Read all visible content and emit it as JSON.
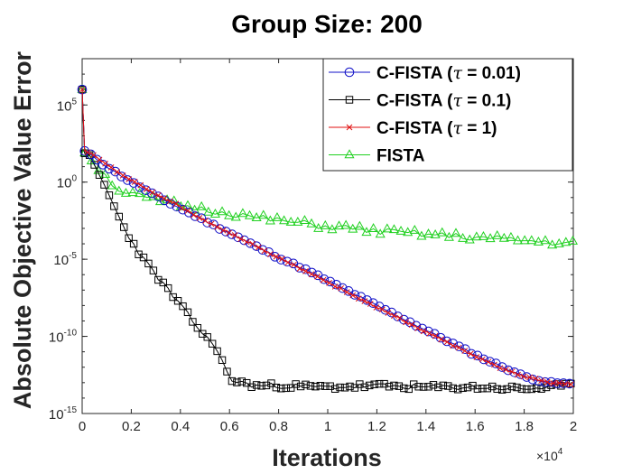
{
  "chart_data": {
    "type": "line",
    "title": "Group Size:  200",
    "xlabel": "Iterations",
    "ylabel": "Absolute Objective Value Error",
    "x_multiplier_label": "×10",
    "x_multiplier_exp": "4",
    "xlim": [
      0,
      20000
    ],
    "ylim_log10": [
      -15,
      8
    ],
    "yscale": "log",
    "xticks": [
      {
        "value": 0,
        "label": "0"
      },
      {
        "value": 2000,
        "label": "0.2"
      },
      {
        "value": 4000,
        "label": "0.4"
      },
      {
        "value": 6000,
        "label": "0.6"
      },
      {
        "value": 8000,
        "label": "0.8"
      },
      {
        "value": 10000,
        "label": "1"
      },
      {
        "value": 12000,
        "label": "1.2"
      },
      {
        "value": 14000,
        "label": "1.4"
      },
      {
        "value": 16000,
        "label": "1.6"
      },
      {
        "value": 18000,
        "label": "1.8"
      },
      {
        "value": 20000,
        "label": "2"
      }
    ],
    "yticks": [
      {
        "value": 5,
        "base": "10",
        "exp": "5"
      },
      {
        "value": 0,
        "base": "10",
        "exp": "0"
      },
      {
        "value": -5,
        "base": "10",
        "exp": "-5"
      },
      {
        "value": -10,
        "base": "10",
        "exp": "-10"
      },
      {
        "value": -15,
        "base": "10",
        "exp": "-15"
      }
    ],
    "legend_position": "top-right",
    "series": [
      {
        "name": "C-FISTA (τ = 0.01)",
        "label_prefix": "C-FISTA (",
        "label_symbol": "τ",
        "label_suffix": " = 0.01)",
        "color": "#1010c8",
        "marker": "circle",
        "x": [
          0,
          100,
          500,
          1000,
          2000,
          3000,
          4000,
          5000,
          6000,
          7000,
          8000,
          9000,
          10000,
          11000,
          12000,
          13000,
          14000,
          15000,
          16000,
          17000,
          18000,
          19000,
          20000
        ],
        "y_log10": [
          6.0,
          2.0,
          1.6,
          1.0,
          0.0,
          -0.9,
          -1.7,
          -2.5,
          -3.3,
          -4.1,
          -4.9,
          -5.6,
          -6.4,
          -7.2,
          -8.0,
          -8.8,
          -9.6,
          -10.4,
          -11.2,
          -11.9,
          -12.6,
          -13.0,
          -13.1
        ]
      },
      {
        "name": "C-FISTA (τ = 0.1)",
        "label_prefix": "C-FISTA (",
        "label_symbol": "τ",
        "label_suffix": " = 0.1)",
        "color": "#000000",
        "marker": "square",
        "x": [
          0,
          100,
          300,
          1000,
          1500,
          2000,
          2500,
          3000,
          3500,
          4000,
          4500,
          5000,
          5500,
          6000,
          7000,
          8000,
          10000,
          12000,
          14000,
          16000,
          18000,
          20000
        ],
        "y_log10": [
          6.0,
          2.0,
          1.6,
          -0.5,
          -2.3,
          -3.8,
          -5.0,
          -6.0,
          -7.0,
          -8.0,
          -9.0,
          -10.0,
          -10.8,
          -12.8,
          -13.2,
          -13.2,
          -13.3,
          -13.2,
          -13.3,
          -13.3,
          -13.4,
          -13.2
        ]
      },
      {
        "name": "C-FISTA (τ = 1)",
        "label_prefix": "C-FISTA (",
        "label_symbol": "τ",
        "label_suffix": " = 1)",
        "color": "#e01010",
        "marker": "cross",
        "x": [
          0,
          100,
          500,
          1000,
          2000,
          3000,
          4000,
          5000,
          6000,
          7000,
          8000,
          9000,
          10000,
          11000,
          12000,
          13000,
          14000,
          15000,
          16000,
          17000,
          18000,
          19000,
          20000
        ],
        "y_log10": [
          6.0,
          2.0,
          1.7,
          1.1,
          0.1,
          -0.8,
          -1.6,
          -2.5,
          -3.3,
          -4.1,
          -4.9,
          -5.7,
          -6.5,
          -7.3,
          -8.1,
          -8.9,
          -9.7,
          -10.5,
          -11.3,
          -12.0,
          -12.6,
          -13.0,
          -13.1
        ]
      },
      {
        "name": "FISTA",
        "label_prefix": "FISTA",
        "label_symbol": "",
        "label_suffix": "",
        "color": "#20d020",
        "marker": "triangle",
        "x": [
          0,
          100,
          500,
          1000,
          1500,
          2000,
          3000,
          4000,
          5000,
          6000,
          7000,
          8000,
          9000,
          10000,
          11000,
          12000,
          13000,
          14000,
          15000,
          16000,
          17000,
          18000,
          19000,
          20000
        ],
        "y_log10": [
          6.0,
          2.0,
          1.2,
          0.3,
          -0.5,
          -0.8,
          -1.2,
          -1.5,
          -1.8,
          -2.0,
          -2.3,
          -2.5,
          -2.7,
          -2.9,
          -3.0,
          -3.2,
          -3.3,
          -3.4,
          -3.5,
          -3.6,
          -3.7,
          -3.8,
          -3.9,
          -4.0
        ]
      }
    ]
  }
}
